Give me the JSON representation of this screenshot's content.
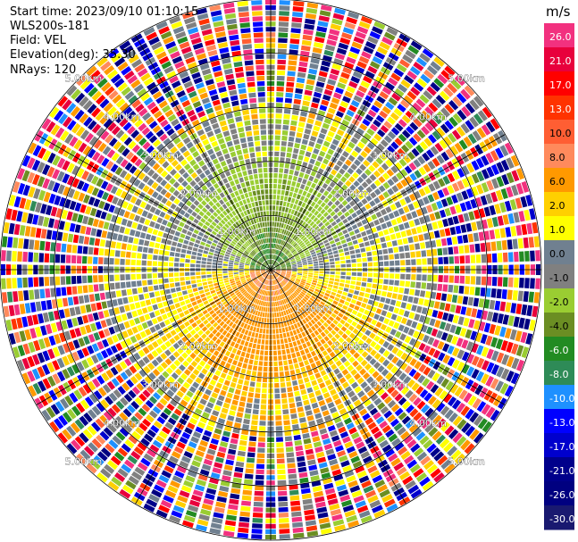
{
  "header": {
    "start_time": "Start time: 2023/09/10 01:10:15",
    "instrument": "WLS200s-181",
    "field": "Field: VEL",
    "elevation": "Elevation(deg): 35.30",
    "nrays": "NRays: 120"
  },
  "chart_data": {
    "type": "polar-ppi",
    "field": "VEL",
    "units": "m/s",
    "nrays": 120,
    "elevation_deg": 35.3,
    "max_range_km": 5.0,
    "range_rings_km": [
      1.0,
      2.0,
      3.0,
      4.0,
      5.0
    ],
    "ring_labels": [
      "1.00km",
      "2.00km",
      "3.00km",
      "4.00km",
      "5.00km"
    ],
    "colorbar": {
      "title": "m/s",
      "ticks": [
        "26.0",
        "21.0",
        "17.0",
        "13.0",
        "10.0",
        "8.0",
        "6.0",
        "2.0",
        "1.0",
        "0.0",
        "-1.0",
        "-2.0",
        "-4.0",
        "-6.0",
        "-8.0",
        "-10.0",
        "-13.0",
        "-17.0",
        "-21.0",
        "-26.0",
        "-30.0"
      ],
      "colors": [
        "#f2317f",
        "#e8003c",
        "#ff0000",
        "#ff3300",
        "#ff5e33",
        "#ff8a5c",
        "#ff9900",
        "#ffd000",
        "#ffff00",
        "#708090",
        "#808080",
        "#9acd32",
        "#6b8e23",
        "#228b22",
        "#2e8b57",
        "#1e90ff",
        "#0000ff",
        "#0000cd",
        "#00008b",
        "#000080",
        "#191970"
      ]
    },
    "velocity_pattern": {
      "near_range_km": 0.4,
      "near_north": -6.0,
      "near_south": 6.0,
      "mid_north": -2.0,
      "mid_south": 2.0,
      "transition_km": [
        2.1,
        3.0
      ]
    }
  }
}
